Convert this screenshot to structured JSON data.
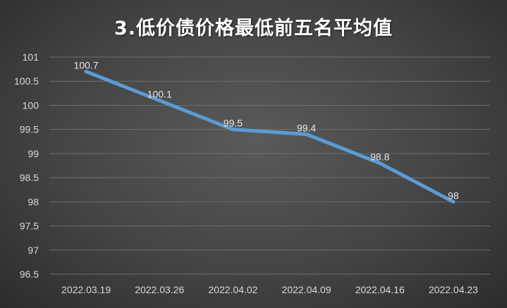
{
  "chart_data": {
    "type": "line",
    "title": "3.低价债价格最低前五名平均值",
    "categories": [
      "2022.03.19",
      "2022.03.26",
      "2022.04.02",
      "2022.04.09",
      "2022.04.16",
      "2022.04.23"
    ],
    "values": [
      100.7,
      100.1,
      99.5,
      99.4,
      98.8,
      98
    ],
    "data_labels": [
      "100.7",
      "100.1",
      "99.5",
      "99.4",
      "98.8",
      "98"
    ],
    "y_ticks": [
      "96.5",
      "97",
      "97.5",
      "98",
      "98.5",
      "99",
      "99.5",
      "100",
      "100.5",
      "101"
    ],
    "ylim": [
      96.5,
      101
    ],
    "grid": true,
    "line_color": "#5b9bd5",
    "background_color": "#404040",
    "text_color": "#d9d9d9"
  }
}
